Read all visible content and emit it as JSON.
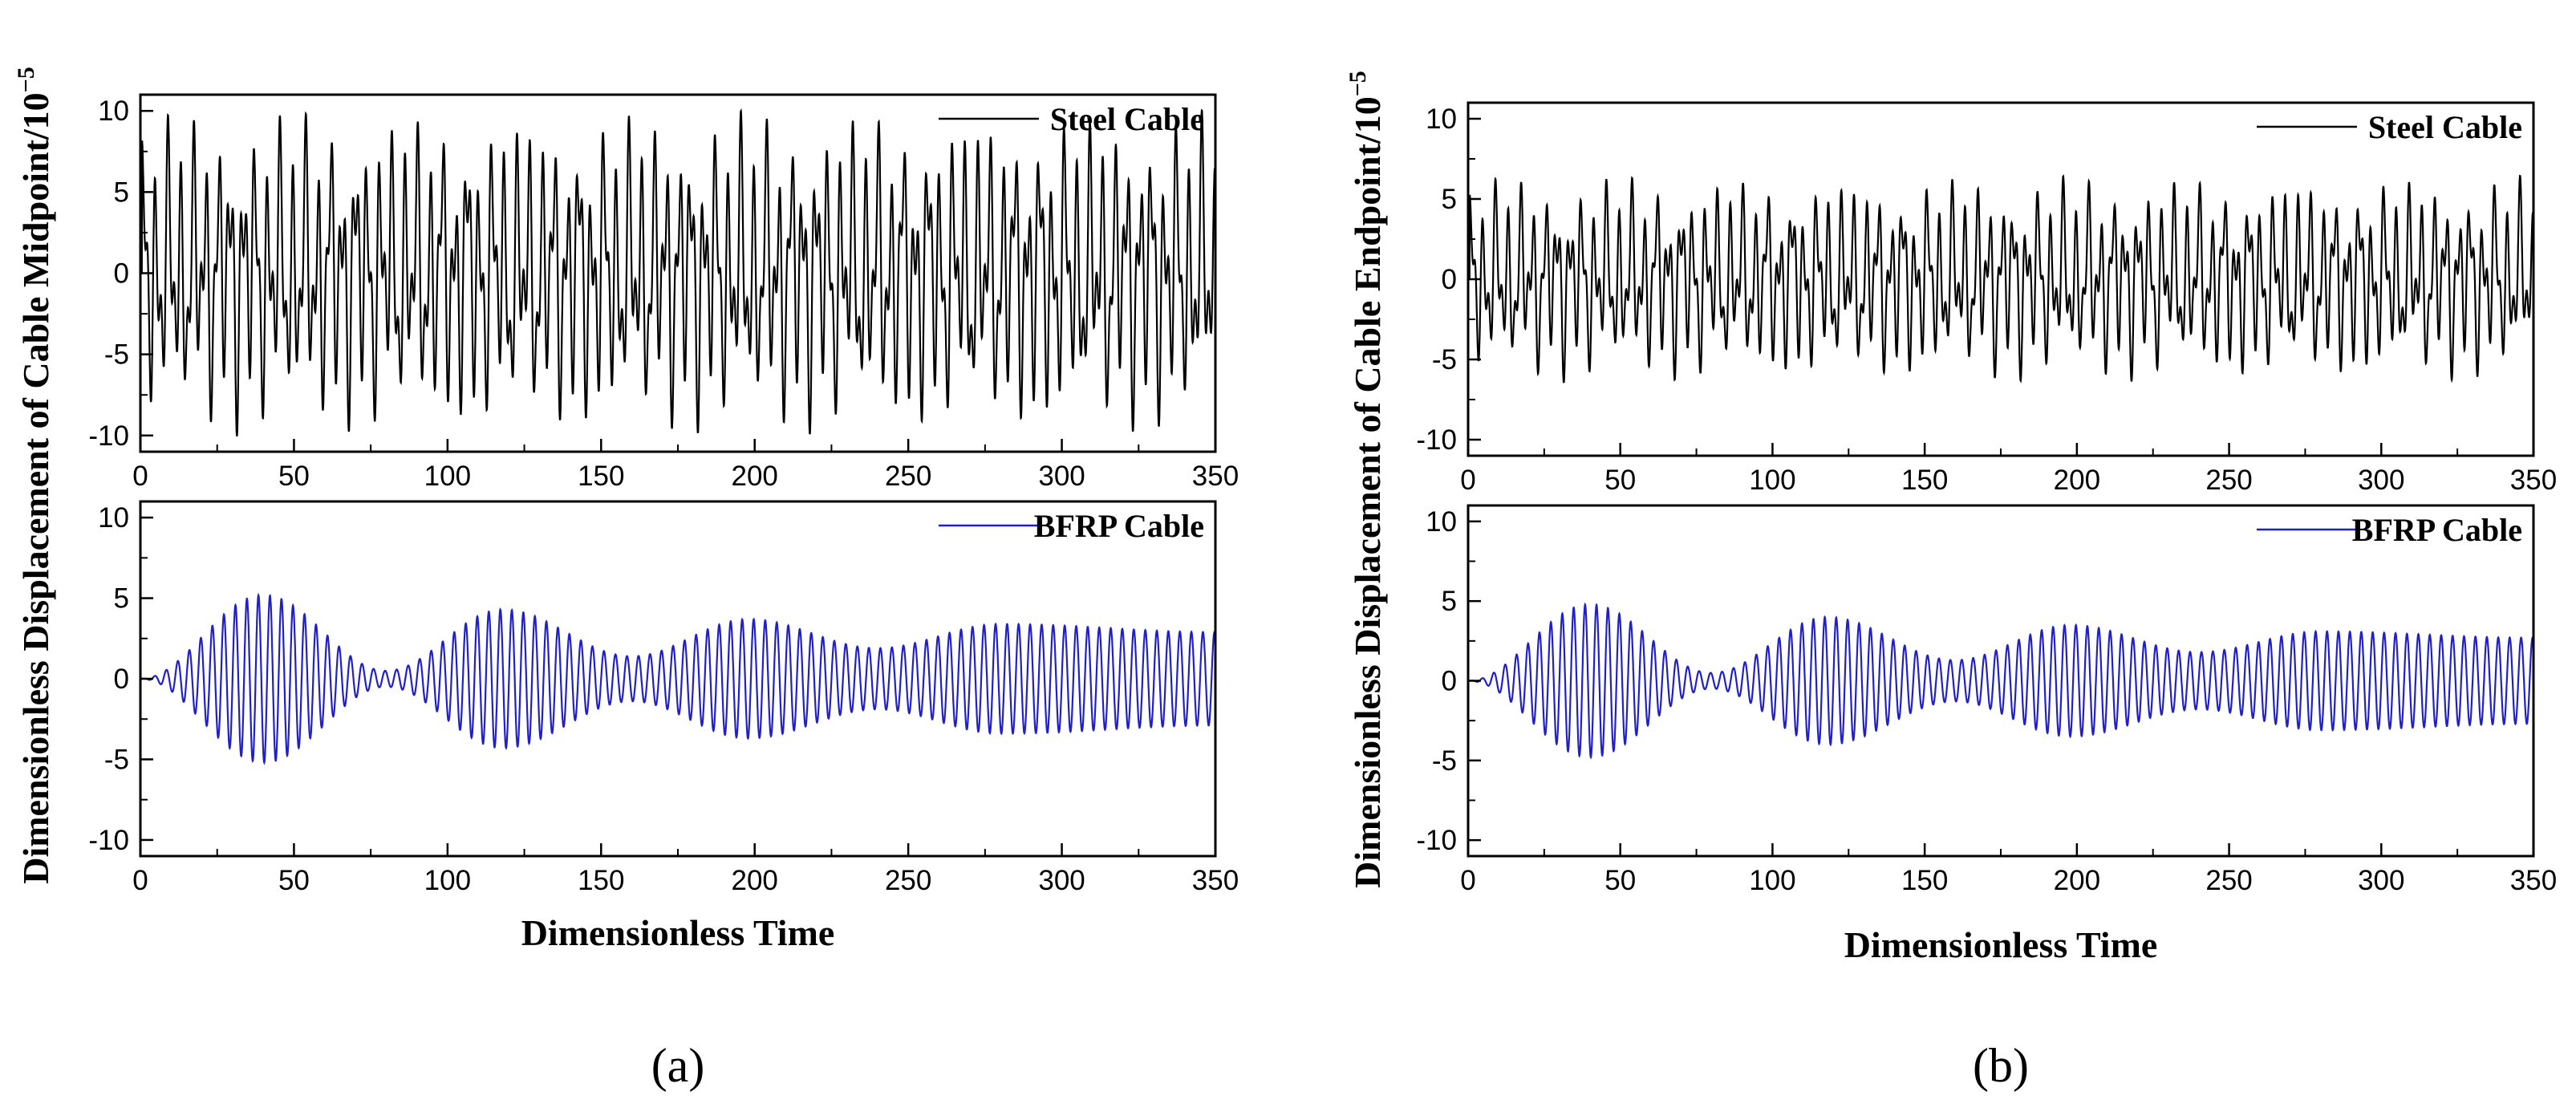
{
  "chart_data": [
    {
      "type": "line",
      "panel_label": "(a)",
      "xlabel": "Dimensionless Time",
      "ylabel_main": "Dimensionless Displacement of Cable Midpoint/10",
      "ylabel_exponent": "−5",
      "subplots": [
        {
          "title": "",
          "legend": "Steel Cable",
          "legend_position": "top-right",
          "color": "#000000",
          "xlim": [
            0,
            350
          ],
          "ylim": [
            -11,
            11
          ],
          "xticks": [
            0,
            50,
            100,
            150,
            200,
            250,
            300,
            350
          ],
          "yticks": [
            -10,
            -5,
            0,
            5,
            10
          ],
          "series": [
            {
              "name": "Steel Cable",
              "signal": "multi-mode, non-decaying, amplitude approx 9.5 (midpoint)",
              "peak_amplitude": 9.5,
              "initial_value": 0
            }
          ]
        },
        {
          "title": "",
          "legend": "BFRP Cable",
          "legend_position": "top-right",
          "color": "#1f1fcc",
          "xlim": [
            0,
            350
          ],
          "ylim": [
            -11,
            11
          ],
          "xticks": [
            0,
            50,
            100,
            150,
            200,
            250,
            300,
            350
          ],
          "yticks": [
            -10,
            -5,
            0,
            5,
            10
          ],
          "series": [
            {
              "name": "BFRP Cable",
              "signal": "beating oscillation",
              "envelope_peaks": [
                [
                  40,
                  5.2
                ],
                [
                  118,
                  4.3
                ],
                [
                  198,
                  3.7
                ],
                [
                  280,
                  3.4
                ]
              ],
              "envelope_troughs": [
                [
                  0,
                  0
                ],
                [
                  80,
                  0.5
                ],
                [
                  160,
                  1.4
                ],
                [
                  240,
                  1.9
                ],
                [
                  350,
                  2.9
                ]
              ]
            }
          ]
        }
      ]
    },
    {
      "type": "line",
      "panel_label": "(b)",
      "xlabel": "Dimensionless Time",
      "ylabel_main": "Dimensionless Displacement of Cable Endpoint/10",
      "ylabel_exponent": "−5",
      "subplots": [
        {
          "title": "",
          "legend": "Steel Cable",
          "legend_position": "top-right",
          "color": "#000000",
          "xlim": [
            0,
            350
          ],
          "ylim": [
            -11,
            11
          ],
          "xticks": [
            0,
            50,
            100,
            150,
            200,
            250,
            300,
            350
          ],
          "yticks": [
            -10,
            -5,
            0,
            5,
            10
          ],
          "series": [
            {
              "name": "Steel Cable",
              "signal": "multi-mode, non-decaying, amplitude approx 6 (endpoint)",
              "peak_amplitude": 6.1,
              "initial_value": 0
            }
          ]
        },
        {
          "title": "",
          "legend": "BFRP Cable",
          "legend_position": "top-right",
          "color": "#1f1fcc",
          "xlim": [
            0,
            350
          ],
          "ylim": [
            -11,
            11
          ],
          "xticks": [
            0,
            50,
            100,
            150,
            200,
            250,
            300,
            350
          ],
          "yticks": [
            -10,
            -5,
            0,
            5,
            10
          ],
          "series": [
            {
              "name": "BFRP Cable",
              "signal": "beating oscillation",
              "envelope_peaks": [
                [
                  40,
                  4.8
                ],
                [
                  118,
                  4.0
                ],
                [
                  198,
                  3.5
                ],
                [
                  280,
                  3.1
                ]
              ],
              "envelope_troughs": [
                [
                  0,
                  0
                ],
                [
                  80,
                  0.5
                ],
                [
                  160,
                  1.3
                ],
                [
                  240,
                  1.8
                ],
                [
                  350,
                  2.7
                ]
              ]
            }
          ]
        }
      ]
    }
  ]
}
